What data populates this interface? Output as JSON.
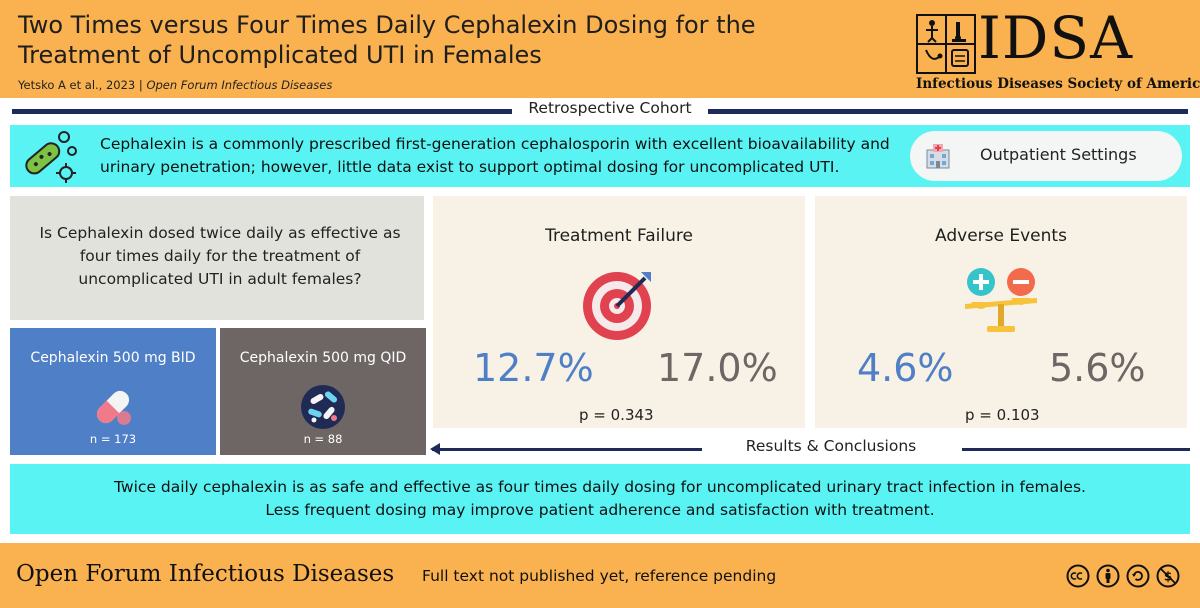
{
  "header": {
    "title": "Two Times versus Four Times Daily Cephalexin Dosing for the Treatment of Uncomplicated UTI in Females",
    "citation_authors": "Yetsko A et al., 2023  |  ",
    "citation_journal": "Open Forum Infectious Diseases",
    "logo": {
      "name": "IDSA",
      "subtitle": "Infectious Diseases Society of America",
      "icon": "idsa-quadrant-icon"
    }
  },
  "study_design": "Retrospective Cohort",
  "intro": {
    "text": "Cephalexin is a commonly prescribed first-generation cephalosporin with excellent bioavailability and urinary penetration; however, little data exist to support optimal dosing for uncomplicated UTI.",
    "icon": "bacteria-icon",
    "setting_label": "Outpatient Settings",
    "setting_icon": "hospital-icon"
  },
  "question": "Is Cephalexin dosed twice daily as effective as four times daily for the treatment of uncomplicated UTI in adult females?",
  "arms": [
    {
      "label": "Cephalexin 500 mg BID",
      "n": "n = 173",
      "icon": "capsule-icon",
      "color": "#4f7fc6"
    },
    {
      "label": "Cephalexin 500 mg  QID",
      "n": "n = 88",
      "icon": "pills-icon",
      "color": "#6d6665"
    }
  ],
  "results": {
    "treatment_failure": {
      "title": "Treatment Failure",
      "bid": "12.7%",
      "qid": "17.0%",
      "p": "p = 0.343",
      "icon": "target-icon"
    },
    "adverse_events": {
      "title": "Adverse Events",
      "bid": "4.6%",
      "qid": "5.6%",
      "p": "p = 0.103",
      "icon": "balance-scale-icon"
    }
  },
  "results_label": "Results & Conclusions",
  "conclusion": {
    "line1": "Twice daily cephalexin is as safe and effective as four times daily dosing for uncomplicated urinary tract infection in females.",
    "line2": "Less frequent dosing may improve patient adherence and satisfaction with treatment."
  },
  "footer": {
    "journal": "Open Forum Infectious Diseases",
    "note": "Full text not published yet, reference pending",
    "license_icons": [
      "cc-icon",
      "by-icon",
      "sa-icon",
      "nc-icon"
    ]
  },
  "colors": {
    "header_bg": "#f9b24f",
    "cyan_panel": "#59f3f3",
    "bid_blue": "#4f7fc6",
    "qid_gray": "#6d6665",
    "navy_rule": "#1e2a5a"
  }
}
